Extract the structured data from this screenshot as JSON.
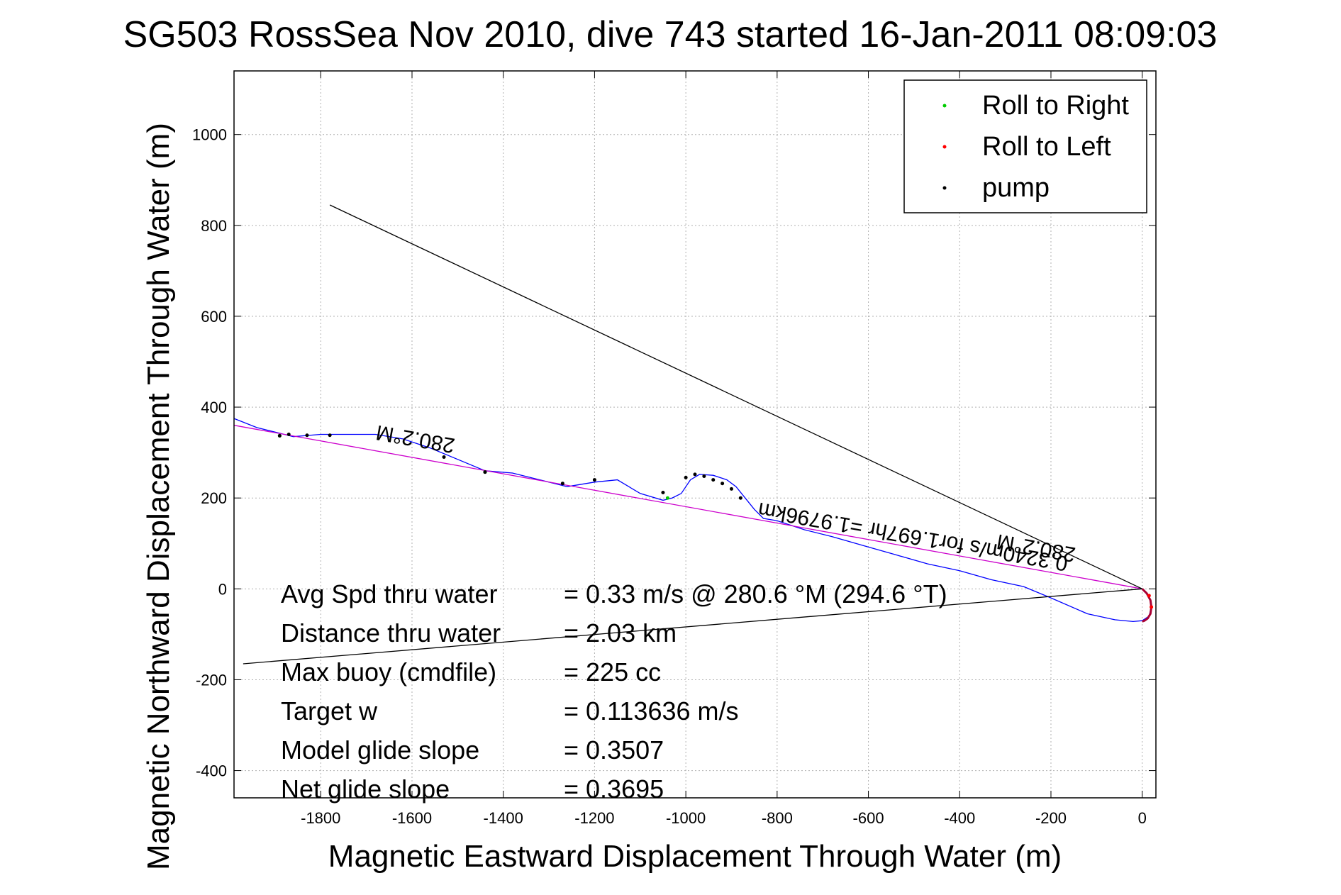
{
  "chart_data": {
    "type": "line",
    "title": "SG503 RossSea Nov 2010, dive 743 started 16-Jan-2011 08:09:03",
    "xlabel": "Magnetic Eastward Displacement Through Water (m)",
    "ylabel": "Magnetic Northward Displacement Through Water (m)",
    "xlim": [
      -1990,
      30
    ],
    "ylim": [
      -460,
      1140
    ],
    "xticks": [
      -1800,
      -1600,
      -1400,
      -1200,
      -1000,
      -800,
      -600,
      -400,
      -200,
      0
    ],
    "yticks": [
      -400,
      -200,
      0,
      200,
      400,
      600,
      800,
      1000
    ],
    "grid": true,
    "legend": {
      "position": "top-right",
      "entries": [
        {
          "label": "Roll to Right",
          "color": "#00cc00"
        },
        {
          "label": "Roll to Left",
          "color": "#ff0000"
        },
        {
          "label": "pump",
          "color": "#000000"
        }
      ]
    },
    "series": [
      {
        "color": "#0000ff",
        "x": [
          0,
          15,
          20,
          15,
          0,
          -20,
          -60,
          -120,
          -200,
          -260,
          -330,
          -400,
          -470,
          -540,
          -610,
          -680,
          -740,
          -800,
          -830,
          -850,
          -870,
          -890,
          -910,
          -940,
          -970,
          -990,
          -1010,
          -1030,
          -1050,
          -1100,
          -1150,
          -1200,
          -1260,
          -1320,
          -1380,
          -1440,
          -1500,
          -1560,
          -1620,
          -1680,
          -1740,
          -1800,
          -1860,
          -1900,
          -1940,
          -1990
        ],
        "y": [
          0,
          -15,
          -40,
          -60,
          -70,
          -72,
          -68,
          -55,
          -20,
          5,
          20,
          40,
          55,
          75,
          95,
          115,
          130,
          150,
          155,
          175,
          200,
          225,
          240,
          250,
          252,
          240,
          210,
          200,
          195,
          210,
          240,
          235,
          225,
          240,
          255,
          260,
          285,
          310,
          330,
          340,
          340,
          340,
          335,
          345,
          355,
          375
        ]
      },
      {
        "color": "#cc00cc",
        "x": [
          0,
          -1990
        ],
        "y": [
          0,
          360
        ]
      },
      {
        "color": "#000000",
        "x": [
          0,
          -1780
        ],
        "y": [
          0,
          845
        ]
      },
      {
        "color": "#000000",
        "x": [
          0,
          -1970
        ],
        "y": [
          0,
          -165
        ]
      },
      {
        "color": "#aa0033",
        "x": [
          0,
          10,
          18,
          20,
          18,
          12,
          5,
          0
        ],
        "y": [
          0,
          -10,
          -25,
          -40,
          -55,
          -65,
          -70,
          -72
        ]
      }
    ],
    "markers": {
      "roll_right": {
        "color": "#00cc00",
        "x": [
          -1890,
          -1440,
          -1040
        ],
        "y": [
          337,
          257,
          200
        ]
      },
      "roll_left": {
        "color": "#ff0000",
        "x": [
          15,
          20
        ],
        "y": [
          -15,
          -40
        ]
      },
      "pump": {
        "color": "#000000",
        "x": [
          -1890,
          -1870,
          -1830,
          -1780,
          -1530,
          -1440,
          -1270,
          -1200,
          -1050,
          -1000,
          -980,
          -960,
          -940,
          -920,
          -900,
          -880
        ],
        "y": [
          337,
          340,
          338,
          338,
          290,
          257,
          232,
          240,
          212,
          245,
          252,
          248,
          240,
          232,
          220,
          200
        ]
      }
    },
    "segment_labels": [
      {
        "text": "280.2°M",
        "x": -1590,
        "y": 345,
        "angle": 190
      },
      {
        "text": "0.3240m/s for1.697hr =1.9796km",
        "x": -500,
        "y": 130,
        "angle": 190
      },
      {
        "text": "280.2°M",
        "x": -230,
        "y": 105,
        "angle": 190
      }
    ],
    "annotations": [
      {
        "label": "Avg Spd thru water",
        "value": "=  0.33 m/s @ 280.6 °M (294.6 °T)"
      },
      {
        "label": "Distance thru water",
        "value": "=  2.03 km"
      },
      {
        "label": "Max buoy (cmdfile)",
        "value": "= 225 cc"
      },
      {
        "label": "Target w",
        "value": "= 0.113636 m/s"
      },
      {
        "label": "Model glide slope",
        "value": "= 0.3507"
      },
      {
        "label": "Net glide slope",
        "value": "= 0.3695"
      }
    ]
  }
}
